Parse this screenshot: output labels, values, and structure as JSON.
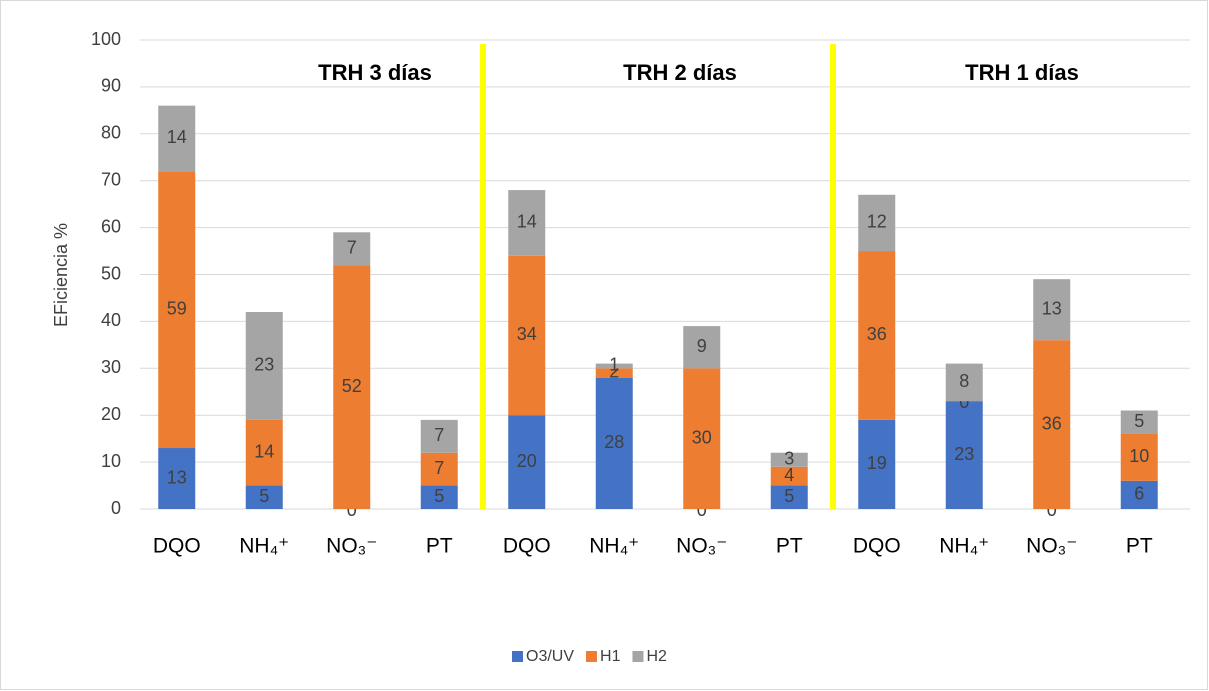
{
  "chart_data": {
    "type": "stacked_bar",
    "y_label": "EFiciencia %",
    "categories": [
      "DQO",
      "NH₄⁺",
      "NO₃⁻",
      "PT",
      "DQO",
      "NH₄⁺",
      "NO₃⁻",
      "PT",
      "DQO",
      "NH₄⁺",
      "NO₃⁻",
      "PT"
    ],
    "groups": [
      "TRH 3 días",
      "TRH 2 días",
      "TRH 1 días"
    ],
    "series": [
      {
        "name": "O3/UV",
        "color": "#4472c4",
        "values": [
          13,
          5,
          0,
          5,
          20,
          28,
          0,
          5,
          19,
          23,
          0,
          6
        ]
      },
      {
        "name": "H1",
        "color": "#ed7d31",
        "values": [
          59,
          14,
          52,
          7,
          34,
          2,
          30,
          4,
          36,
          0,
          36,
          10
        ]
      },
      {
        "name": "H2",
        "color": "#a5a5a5",
        "values": [
          14,
          23,
          7,
          7,
          14,
          1,
          9,
          3,
          12,
          8,
          13,
          5
        ]
      }
    ],
    "ylim": [
      0,
      100
    ],
    "yticks": [
      0,
      10,
      20,
      30,
      40,
      50,
      60,
      70,
      80,
      90,
      100
    ],
    "grid": true,
    "legend": "bottom",
    "separator_color": "#ffff00"
  }
}
